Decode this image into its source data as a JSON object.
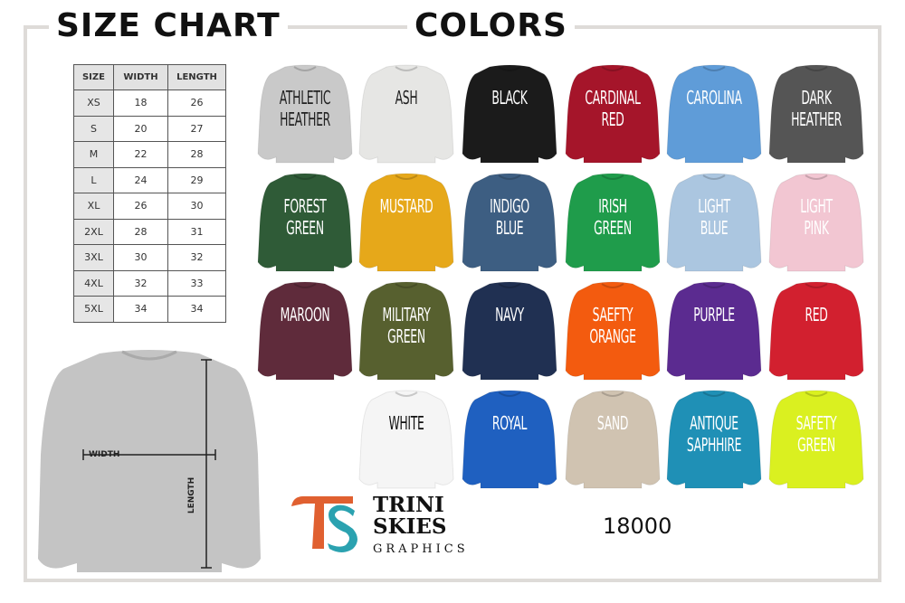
{
  "size_chart": {
    "title": "SIZE CHART",
    "headers": [
      "SIZE",
      "WIDTH",
      "LENGTH"
    ],
    "rows": [
      [
        "XS",
        "18",
        "26"
      ],
      [
        "S",
        "20",
        "27"
      ],
      [
        "M",
        "22",
        "28"
      ],
      [
        "L",
        "24",
        "29"
      ],
      [
        "XL",
        "26",
        "30"
      ],
      [
        "2XL",
        "28",
        "31"
      ],
      [
        "3XL",
        "30",
        "32"
      ],
      [
        "4XL",
        "32",
        "33"
      ],
      [
        "5XL",
        "34",
        "34"
      ]
    ],
    "width_label": "WIDTH",
    "length_label": "LENGTH"
  },
  "colors": {
    "title": "COLORS",
    "items": [
      {
        "name": "ATHLETIC\nHEATHER",
        "hex": "#c9c9c9",
        "text": "#222222"
      },
      {
        "name": "ASH",
        "hex": "#e6e6e4",
        "text": "#222222"
      },
      {
        "name": "BLACK",
        "hex": "#1b1b1b",
        "text": "#ffffff"
      },
      {
        "name": "CARDINAL\nRED",
        "hex": "#a5152a",
        "text": "#ffffff"
      },
      {
        "name": "CAROLINA",
        "hex": "#5f9cd8",
        "text": "#ffffff"
      },
      {
        "name": "DARK\nHEATHER",
        "hex": "#555555",
        "text": "#ffffff"
      },
      {
        "name": "FOREST\nGREEN",
        "hex": "#2f5b37",
        "text": "#ffffff"
      },
      {
        "name": "MUSTARD",
        "hex": "#e6a81a",
        "text": "#ffffff"
      },
      {
        "name": "INDIGO\nBLUE",
        "hex": "#3d5e82",
        "text": "#ffffff"
      },
      {
        "name": "IRISH\nGREEN",
        "hex": "#1f9c4b",
        "text": "#ffffff"
      },
      {
        "name": "LIGHT\nBLUE",
        "hex": "#abc6e0",
        "text": "#ffffff"
      },
      {
        "name": "LIGHT\nPINK",
        "hex": "#f2c6d2",
        "text": "#ffffff"
      },
      {
        "name": "MAROON",
        "hex": "#5f2b3b",
        "text": "#ffffff"
      },
      {
        "name": "MILITARY\nGREEN",
        "hex": "#57602f",
        "text": "#ffffff"
      },
      {
        "name": "NAVY",
        "hex": "#203052",
        "text": "#ffffff"
      },
      {
        "name": "SAEFTY\nORANGE",
        "hex": "#f35b0f",
        "text": "#ffffff"
      },
      {
        "name": "PURPLE",
        "hex": "#5b2b90",
        "text": "#ffffff"
      },
      {
        "name": "RED",
        "hex": "#d2202f",
        "text": "#ffffff"
      },
      {
        "name": "WHITE",
        "hex": "#f5f5f5",
        "text": "#111111"
      },
      {
        "name": "ROYAL",
        "hex": "#1f60c0",
        "text": "#ffffff"
      },
      {
        "name": "SAND",
        "hex": "#d0c3b1",
        "text": "#ffffff"
      },
      {
        "name": "ANTIQUE\nSAPHHIRE",
        "hex": "#1f90b6",
        "text": "#ffffff"
      },
      {
        "name": "SAFETY\nGREEN",
        "hex": "#daf020",
        "text": "#ffffff"
      }
    ]
  },
  "brand": {
    "line1": "TRINI",
    "line2": "SKIES",
    "line3": "GRAPHICS",
    "monogram": "TS"
  },
  "product_code": "18000"
}
